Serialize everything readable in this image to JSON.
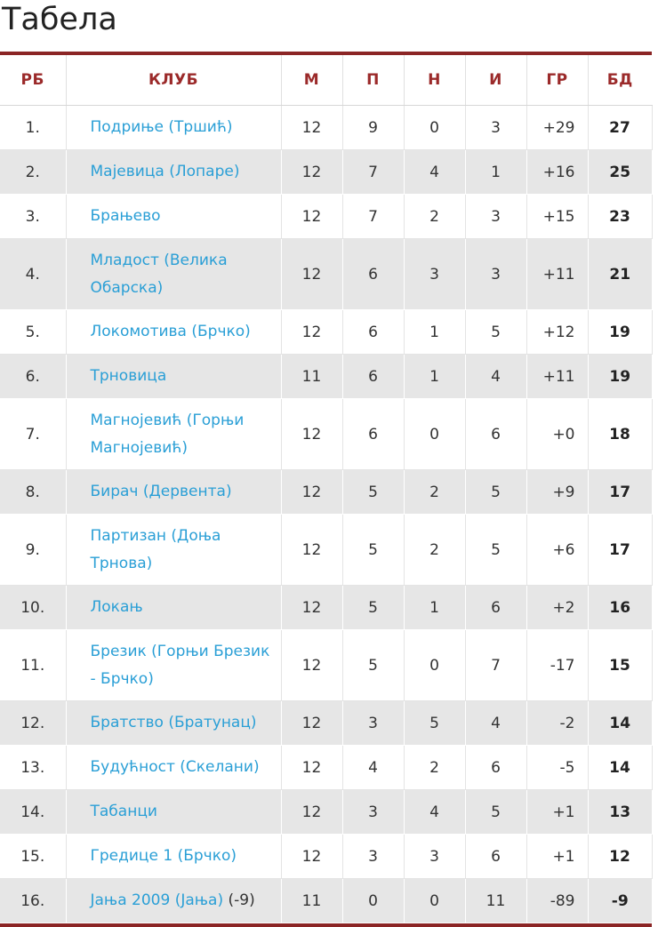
{
  "title": "Табела",
  "headers": [
    "РБ",
    "КЛУБ",
    "М",
    "П",
    "Н",
    "И",
    "ГР",
    "БД"
  ],
  "rows": [
    {
      "rank": "1.",
      "club": "Подриње (Тршић)",
      "note": "",
      "m": "12",
      "p": "9",
      "n": "0",
      "i": "3",
      "gd": "+29",
      "pts": "27"
    },
    {
      "rank": "2.",
      "club": "Мајевица (Лопаре)",
      "note": "",
      "m": "12",
      "p": "7",
      "n": "4",
      "i": "1",
      "gd": "+16",
      "pts": "25"
    },
    {
      "rank": "3.",
      "club": "Брањево",
      "note": "",
      "m": "12",
      "p": "7",
      "n": "2",
      "i": "3",
      "gd": "+15",
      "pts": "23"
    },
    {
      "rank": "4.",
      "club": "Младост (Велика Обарска)",
      "note": "",
      "m": "12",
      "p": "6",
      "n": "3",
      "i": "3",
      "gd": "+11",
      "pts": "21"
    },
    {
      "rank": "5.",
      "club": "Локомотива (Брчко)",
      "note": "",
      "m": "12",
      "p": "6",
      "n": "1",
      "i": "5",
      "gd": "+12",
      "pts": "19"
    },
    {
      "rank": "6.",
      "club": "Трновица",
      "note": "",
      "m": "11",
      "p": "6",
      "n": "1",
      "i": "4",
      "gd": "+11",
      "pts": "19"
    },
    {
      "rank": "7.",
      "club": "Магнојевић (Горњи Магнојевић)",
      "note": "",
      "m": "12",
      "p": "6",
      "n": "0",
      "i": "6",
      "gd": "+0",
      "pts": "18"
    },
    {
      "rank": "8.",
      "club": "Бирач (Дервента)",
      "note": "",
      "m": "12",
      "p": "5",
      "n": "2",
      "i": "5",
      "gd": "+9",
      "pts": "17"
    },
    {
      "rank": "9.",
      "club": "Партизан (Доња Трнова)",
      "note": "",
      "m": "12",
      "p": "5",
      "n": "2",
      "i": "5",
      "gd": "+6",
      "pts": "17"
    },
    {
      "rank": "10.",
      "club": "Локањ",
      "note": "",
      "m": "12",
      "p": "5",
      "n": "1",
      "i": "6",
      "gd": "+2",
      "pts": "16"
    },
    {
      "rank": "11.",
      "club": "Брезик (Горњи Брезик - Брчко)",
      "note": "",
      "m": "12",
      "p": "5",
      "n": "0",
      "i": "7",
      "gd": "-17",
      "pts": "15"
    },
    {
      "rank": "12.",
      "club": "Братство (Братунац)",
      "note": "",
      "m": "12",
      "p": "3",
      "n": "5",
      "i": "4",
      "gd": "-2",
      "pts": "14"
    },
    {
      "rank": "13.",
      "club": "Будућност (Скелани)",
      "note": "",
      "m": "12",
      "p": "4",
      "n": "2",
      "i": "6",
      "gd": "-5",
      "pts": "14"
    },
    {
      "rank": "14.",
      "club": "Табанци",
      "note": "",
      "m": "12",
      "p": "3",
      "n": "4",
      "i": "5",
      "gd": "+1",
      "pts": "13"
    },
    {
      "rank": "15.",
      "club": "Гредице 1 (Брчко)",
      "note": "",
      "m": "12",
      "p": "3",
      "n": "3",
      "i": "6",
      "gd": "+1",
      "pts": "12"
    },
    {
      "rank": "16.",
      "club": "Јања 2009 (Јања)",
      "note": "(-9)",
      "m": "11",
      "p": "0",
      "n": "0",
      "i": "11",
      "gd": "-89",
      "pts": "-9"
    }
  ],
  "colors": {
    "accent": "#8b2525",
    "header_text": "#9b2a2a",
    "link": "#2a9fd6",
    "alt_row": "#e6e6e6"
  }
}
